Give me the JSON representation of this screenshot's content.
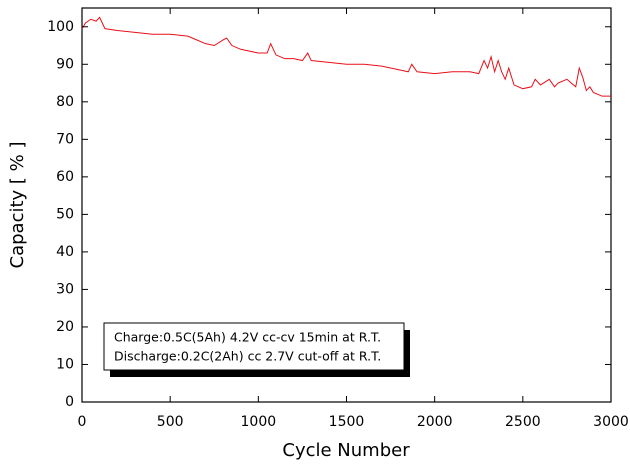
{
  "chart_data": {
    "type": "line",
    "x_label": "Cycle Number",
    "y_label": "Capacity [ % ]",
    "annotation": [
      "Charge:0.5C(5Ah) 4.2V cc-cv 15min at R.T.",
      "Discharge:0.2C(2Ah) cc 2.7V cut-off at R.T."
    ],
    "xlim": [
      0,
      3000
    ],
    "ylim": [
      0,
      105
    ],
    "xticks": [
      0,
      500,
      1000,
      1500,
      2000,
      2500,
      3000
    ],
    "yticks": [
      0,
      10,
      20,
      30,
      40,
      50,
      60,
      70,
      80,
      90,
      100
    ],
    "series": [
      {
        "color": "#e8101a",
        "x": [
          0,
          20,
          50,
          80,
          100,
          130,
          200,
          300,
          400,
          500,
          600,
          650,
          700,
          750,
          800,
          820,
          850,
          900,
          950,
          1000,
          1050,
          1070,
          1100,
          1150,
          1200,
          1250,
          1280,
          1300,
          1400,
          1500,
          1600,
          1700,
          1800,
          1850,
          1870,
          1900,
          2000,
          2100,
          2200,
          2250,
          2280,
          2300,
          2320,
          2340,
          2360,
          2380,
          2400,
          2420,
          2450,
          2500,
          2550,
          2570,
          2600,
          2650,
          2680,
          2700,
          2750,
          2800,
          2820,
          2840,
          2860,
          2880,
          2900,
          2950,
          3000
        ],
        "values": [
          99.5,
          101,
          102,
          101.5,
          102.5,
          99.5,
          99,
          98.5,
          98,
          98,
          97.5,
          96.5,
          95.5,
          95,
          96.5,
          97,
          95,
          94,
          93.5,
          93,
          93,
          95.5,
          92.5,
          91.5,
          91.5,
          91,
          93,
          91,
          90.5,
          90,
          90,
          89.5,
          88.5,
          88,
          90,
          88,
          87.5,
          88,
          88,
          87.5,
          91,
          89,
          92,
          88,
          91,
          88,
          86,
          89,
          84.5,
          83.5,
          84,
          86,
          84.5,
          86,
          84,
          85,
          86,
          84,
          89,
          86.5,
          83,
          84,
          82.5,
          81.5,
          81.5
        ]
      }
    ]
  }
}
